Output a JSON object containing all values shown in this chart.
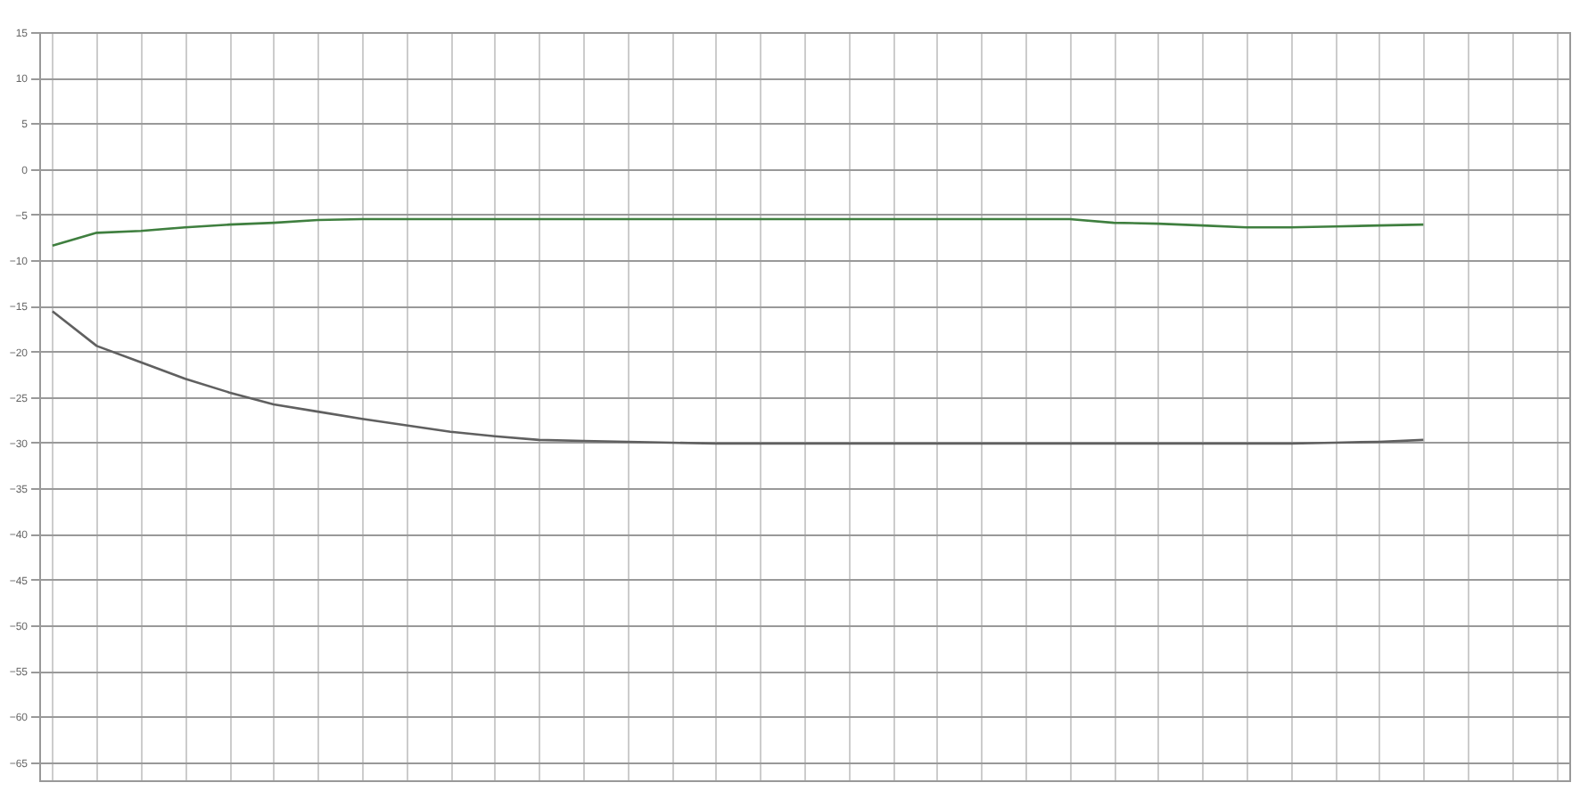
{
  "chart_data": {
    "type": "line",
    "categories": [
      null,
      null,
      null,
      null,
      null,
      null,
      null,
      null,
      null,
      null,
      null,
      null,
      null,
      null,
      null,
      null,
      null,
      null,
      null,
      null,
      null,
      null,
      null,
      null,
      null,
      null,
      null,
      null,
      null,
      null,
      null,
      null,
      null,
      null,
      null
    ],
    "series": [
      {
        "color": "#3f7f3f",
        "values": [
          -8.4,
          -7.0,
          -6.8,
          -6.4,
          -6.1,
          -5.9,
          -5.6,
          -5.5,
          -5.5,
          -5.5,
          -5.5,
          -5.5,
          -5.5,
          -5.5,
          -5.5,
          -5.5,
          -5.5,
          -5.5,
          -5.5,
          -5.5,
          -5.5,
          -5.5,
          -5.5,
          -5.5,
          -5.9,
          -6.0,
          -6.2,
          -6.4,
          -6.4,
          -6.3,
          -6.2,
          -6.1,
          null,
          null,
          null
        ]
      },
      {
        "color": "#606060",
        "values": [
          -15.6,
          -19.4,
          -21.2,
          -23.0,
          -24.5,
          -25.8,
          -26.6,
          -27.4,
          -28.1,
          -28.8,
          -29.3,
          -29.7,
          -29.8,
          -29.9,
          -30.0,
          -30.1,
          -30.1,
          -30.1,
          -30.1,
          -30.1,
          -30.1,
          -30.1,
          -30.1,
          -30.1,
          -30.1,
          -30.1,
          -30.1,
          -30.1,
          -30.1,
          -30.0,
          -29.9,
          -29.7,
          null,
          null,
          null
        ]
      }
    ],
    "ylim": [
      -67,
      15
    ],
    "yticks": [
      15,
      10,
      5,
      0,
      -5,
      -10,
      -15,
      -20,
      -25,
      -30,
      -35,
      -40,
      -45,
      -50,
      -55,
      -60,
      -65
    ],
    "grid": true,
    "tick_labels": "y"
  }
}
